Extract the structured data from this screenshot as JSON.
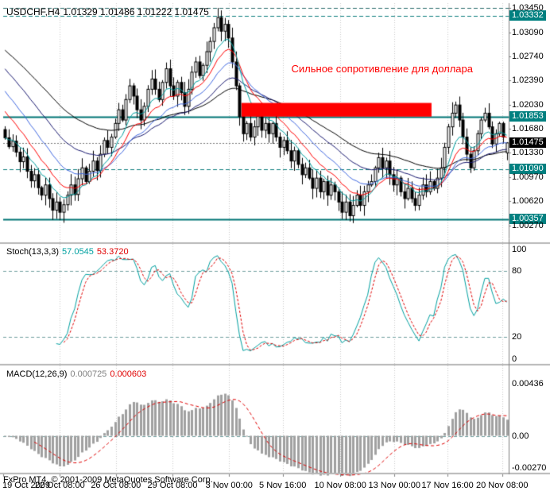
{
  "header": {
    "symbol": "USDCHF,H4",
    "ohlc": "1.01329 1.01486 1.01222 1.01475"
  },
  "indicators": {
    "stoch": {
      "name": "Stoch(13,3,3)",
      "v1": "57.0545",
      "v2": "53.3720"
    },
    "macd": {
      "name": "MACD(12,26,9)",
      "v1": "0.000725",
      "v2": "0.000603"
    }
  },
  "footer": {
    "copyright": "FxPro MT4, © 2001-2009 MetaQuotes Software Corp."
  },
  "chart_data": [
    {
      "type": "candlestick",
      "symbol": "USDCHF",
      "timeframe": "H4",
      "current": {
        "open": 1.01329,
        "high": 1.01486,
        "low": 1.01222,
        "close": 1.01475
      },
      "ylim": [
        1.0002,
        1.0352
      ],
      "wick_amp": 0.0016,
      "closes": [
        1.0155,
        1.0142,
        1.015,
        1.0134,
        1.012,
        1.0127,
        1.0106,
        1.0092,
        1.0101,
        1.0082,
        1.0071,
        1.0086,
        1.0066,
        1.0049,
        1.0061,
        1.0046,
        1.0057,
        1.0071,
        1.0086,
        1.0072,
        1.0095,
        1.0111,
        1.0091,
        1.0106,
        1.0121,
        1.0107,
        1.0131,
        1.0151,
        1.0141,
        1.0156,
        1.0176,
        1.0196,
        1.0181,
        1.0211,
        1.0231,
        1.0216,
        1.0196,
        1.0181,
        1.0201,
        1.0226,
        1.0241,
        1.0226,
        1.0211,
        1.0236,
        1.0256,
        1.0231,
        1.0216,
        1.0236,
        1.0221,
        1.0201,
        1.0226,
        1.0251,
        1.0266,
        1.0246,
        1.0261,
        1.0281,
        1.0296,
        1.0316,
        1.0331,
        1.0311,
        1.0321,
        1.0301,
        1.0266,
        1.0231,
        1.0186,
        1.0161,
        1.0176,
        1.0156,
        1.0171,
        1.0186,
        1.0166,
        1.0176,
        1.0161,
        1.0176,
        1.0156,
        1.0141,
        1.0151,
        1.0136,
        1.0121,
        1.0136,
        1.0116,
        1.0101,
        1.0111,
        1.0096,
        1.0081,
        1.0096,
        1.0076,
        1.0091,
        1.0071,
        1.0086,
        1.0076,
        1.0061,
        1.0046,
        1.0061,
        1.0041,
        1.0056,
        1.0071,
        1.0056,
        1.0076,
        1.0086,
        1.0091,
        1.0111,
        1.0126,
        1.0111,
        1.0121,
        1.0101,
        1.0086,
        1.0096,
        1.0076,
        1.0066,
        1.0081,
        1.0066,
        1.0056,
        1.0071,
        1.0086,
        1.0076,
        1.0091,
        1.0081,
        1.0096,
        1.0111,
        1.0141,
        1.0171,
        1.0191,
        1.0203,
        1.0181,
        1.0156,
        1.0131,
        1.0111,
        1.0136,
        1.0161,
        1.0181,
        1.0191,
        1.0171,
        1.0146,
        1.0161,
        1.0176,
        1.0156,
        1.01475
      ],
      "special_wicks": {
        "13": {
          "low": 1.0035
        },
        "58": {
          "high": 1.0345
        },
        "92": {
          "low": 1.0036
        },
        "112": {
          "low": 1.0048
        },
        "123": {
          "high": 1.0208
        },
        "131": {
          "high": 1.0199
        }
      },
      "mas": [
        {
          "period": 55,
          "color": "#000000",
          "seed": 1.0288
        },
        {
          "period": 34,
          "color": "#191970",
          "seed": 1.0262
        },
        {
          "period": 21,
          "color": "#4169E1",
          "seed": 1.023
        },
        {
          "period": 13,
          "color": "#FF0000",
          "seed": 1.02
        },
        {
          "period": 8,
          "color": "#00A0A0",
          "seed": null
        }
      ],
      "hlines": [
        {
          "v": 1.0345,
          "style": "dash",
          "color": "#2F6F6F",
          "width": 1
        },
        {
          "v": 1.03332,
          "style": "dash",
          "color": "#118080",
          "width": 1
        },
        {
          "v": 1.01853,
          "style": "solid",
          "color": "#007575",
          "width": 2
        },
        {
          "v": 1.0109,
          "style": "dash",
          "color": "#118080",
          "width": 1
        },
        {
          "v": 1.00357,
          "style": "solid",
          "color": "#007575",
          "width": 2
        },
        {
          "v": 1.01475,
          "style": "dot",
          "color": "#777777",
          "width": 1
        }
      ],
      "red_zone": {
        "i0": 65,
        "i1": 116,
        "top": 1.0206,
        "bottom": 1.0186,
        "color": "#FF0000"
      },
      "annotation": {
        "text": "Сильное сопротивление для доллара",
        "color": "#FF0000",
        "x_frac": 0.57,
        "price": 1.0256
      },
      "y_ticks": [
        {
          "v": 1.0345,
          "t": "1.03450"
        },
        {
          "v": 1.03332,
          "t": "1.03332",
          "hl": "teal"
        },
        {
          "v": 1.0309,
          "t": "1.03090"
        },
        {
          "v": 1.0274,
          "t": "1.02740"
        },
        {
          "v": 1.0239,
          "t": "1.02390"
        },
        {
          "v": 1.0203,
          "t": "1.02030"
        },
        {
          "v": 1.01853,
          "t": "1.01853",
          "hl": "teal"
        },
        {
          "v": 1.0168,
          "t": "1.01680"
        },
        {
          "v": 1.01475,
          "t": "1.01475",
          "hl": "black"
        },
        {
          "v": 1.0133,
          "t": "1.01330"
        },
        {
          "v": 1.0109,
          "t": "1.01090",
          "hl": "teal"
        },
        {
          "v": 1.0097,
          "t": "1.00970"
        },
        {
          "v": 1.0062,
          "t": "1.00620"
        },
        {
          "v": 1.00357,
          "t": "1.00357",
          "hl": "teal"
        },
        {
          "v": 1.0027,
          "t": "1.00270"
        }
      ],
      "x_ticks": [
        {
          "f": 0.0,
          "t": "19 Oct 2009",
          "align": "left"
        },
        {
          "f": 0.112,
          "t": "22 Oct 08:00"
        },
        {
          "f": 0.223,
          "t": "26 Oct 08:00"
        },
        {
          "f": 0.335,
          "t": "29 Oct 08:00"
        },
        {
          "f": 0.447,
          "t": "3 Nov 00:00"
        },
        {
          "f": 0.553,
          "t": "5 Nov 16:00"
        },
        {
          "f": 0.667,
          "t": "10 Nov 08:00"
        },
        {
          "f": 0.774,
          "t": "13 Nov 00:00"
        },
        {
          "f": 0.879,
          "t": "17 Nov 16:00"
        },
        {
          "f": 0.987,
          "t": "20 Nov 08:00"
        }
      ],
      "colors": {
        "up": "#FFFFFF",
        "down": "#000000",
        "outline": "#000000",
        "grid": "#C8C8C8",
        "teal": "#008080"
      }
    },
    {
      "type": "line",
      "name": "Stochastic Oscillator",
      "label": "Stoch(13,3,3)",
      "values": [
        57.0545,
        53.372
      ],
      "params": {
        "k_period": 13,
        "slowing": 3,
        "d_period": 3
      },
      "ylim": [
        -4,
        104
      ],
      "levels": [
        80,
        20
      ],
      "y_ticks": [
        {
          "v": 100,
          "t": "100"
        },
        {
          "v": 80,
          "t": "80"
        },
        {
          "v": 20,
          "t": "20"
        },
        {
          "v": 0,
          "t": "0"
        }
      ],
      "colors": {
        "main": "#00A0A0",
        "signal": "#E00000",
        "level": "#6FA0A0"
      }
    },
    {
      "type": "histogram",
      "name": "MACD",
      "label": "MACD(12,26,9)",
      "values": [
        0.000725,
        0.000603
      ],
      "params": {
        "fast_ema": 12,
        "slow_ema": 26,
        "signal_sma": 9
      },
      "ylim": [
        -0.0031,
        0.0059
      ],
      "y_ticks": [
        {
          "v": 0.00436,
          "t": "0.00436"
        },
        {
          "v": 0.0,
          "t": "0.00"
        },
        {
          "v": -0.0027,
          "t": "-0.00270"
        }
      ],
      "colors": {
        "hist": "#A0A0A0",
        "signal": "#E00000",
        "zero": "#6FA0A0"
      }
    }
  ]
}
